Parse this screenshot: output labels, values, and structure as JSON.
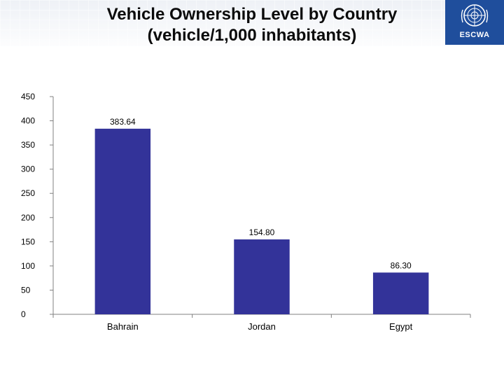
{
  "slide": {
    "title_line1": "Vehicle Ownership Level by Country",
    "title_line2": "(vehicle/1,000 inhabitants)"
  },
  "logo": {
    "text": "ESCWA",
    "icon": "un-emblem-icon",
    "color": "#1f4e9c"
  },
  "chart_data": {
    "type": "bar",
    "title": "",
    "xlabel": "",
    "ylabel": "",
    "categories": [
      "Bahrain",
      "Jordan",
      "Egypt"
    ],
    "values": [
      383.64,
      154.8,
      86.3
    ],
    "value_labels": [
      "383.64",
      "154.80",
      "86.30"
    ],
    "ylim": [
      0,
      450
    ],
    "yticks": [
      0,
      50,
      100,
      150,
      200,
      250,
      300,
      350,
      400,
      450
    ],
    "grid": false,
    "legend": "none",
    "bar_color": "#333399"
  }
}
